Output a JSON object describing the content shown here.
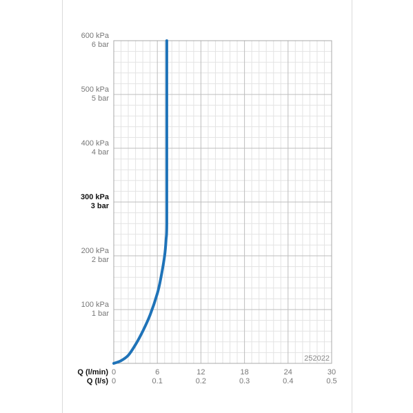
{
  "chart_data": {
    "type": "line",
    "code": "252022",
    "x_axes": [
      {
        "name": "Q (l/min)",
        "ticks": [
          "0",
          "6",
          "12",
          "18",
          "24",
          "30"
        ],
        "range": [
          0,
          30
        ]
      },
      {
        "name": "Q (l/s)",
        "ticks": [
          "0",
          "0.1",
          "0.2",
          "0.3",
          "0.4",
          "0.5"
        ],
        "range": [
          0,
          0.5
        ]
      }
    ],
    "y_ticks": [
      {
        "kpa": "100 kPa",
        "bar": "1 bar",
        "value": 100,
        "emphasis": false
      },
      {
        "kpa": "200 kPa",
        "bar": "2 bar",
        "value": 200,
        "emphasis": false
      },
      {
        "kpa": "300 kPa",
        "bar": "3 bar",
        "value": 300,
        "emphasis": true
      },
      {
        "kpa": "400 kPa",
        "bar": "4 bar",
        "value": 400,
        "emphasis": false
      },
      {
        "kpa": "500 kPa",
        "bar": "5 bar",
        "value": 500,
        "emphasis": false
      },
      {
        "kpa": "600 kPa",
        "bar": "6 bar",
        "value": 600,
        "emphasis": false
      }
    ],
    "ylim": [
      0,
      600
    ],
    "xlim": [
      0,
      30
    ],
    "grid": true,
    "series": [
      {
        "color": "#1f73b8",
        "x": [
          0,
          1,
          2,
          3,
          4,
          5,
          6,
          6.5,
          7,
          7.2,
          7.3,
          7.3,
          7.3
        ],
        "y": [
          0,
          5,
          15,
          35,
          60,
          90,
          130,
          160,
          200,
          230,
          260,
          400,
          600
        ]
      }
    ]
  }
}
